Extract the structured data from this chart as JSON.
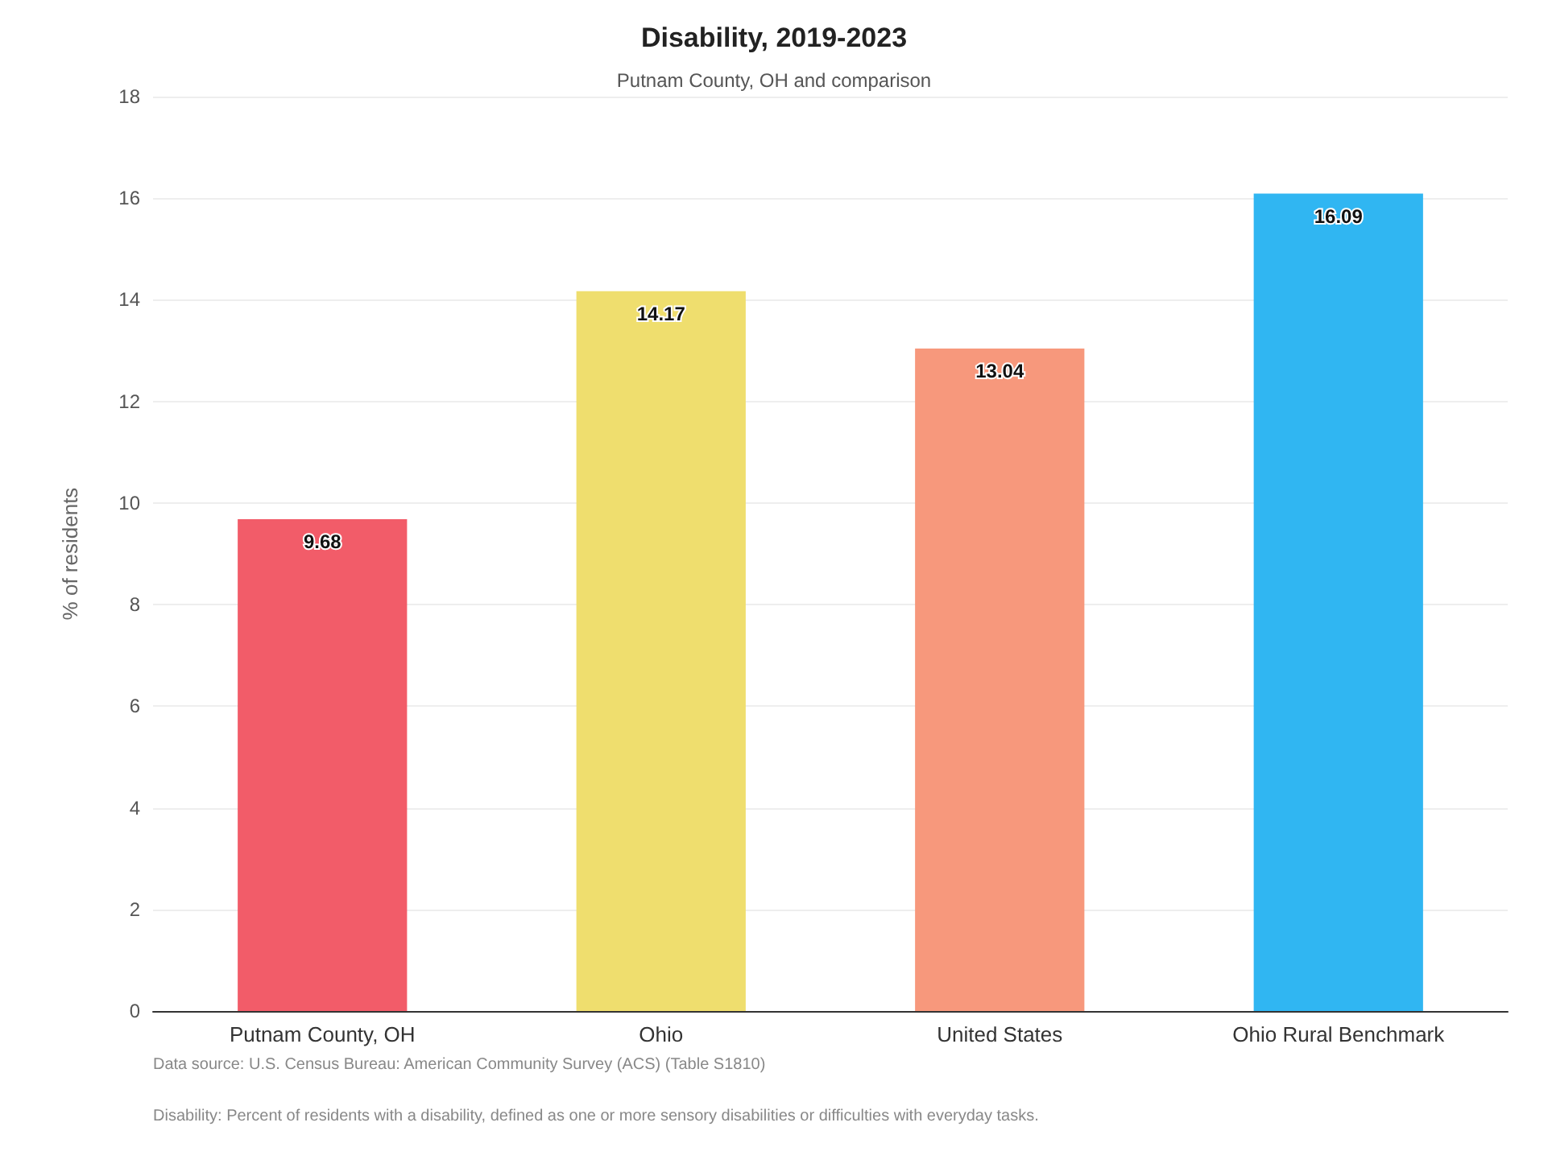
{
  "chart_data": {
    "type": "bar",
    "title": "Disability, 2019-2023",
    "subtitle": "Putnam County, OH and comparison",
    "ylabel": "% of residents",
    "categories": [
      "Putnam County, OH",
      "Ohio",
      "United States",
      "Ohio Rural Benchmark"
    ],
    "values": [
      9.68,
      14.17,
      13.04,
      16.09
    ],
    "colors": [
      "#f25c69",
      "#efde6e",
      "#f7987c",
      "#30b6f2"
    ],
    "ylim": [
      0,
      18
    ],
    "yticks": [
      0,
      2,
      4,
      6,
      8,
      10,
      12,
      14,
      16,
      18
    ],
    "grid": "y",
    "data_labels": true,
    "annotations": [
      "Data source: U.S. Census Bureau: American Community Survey (ACS) (Table S1810)",
      "Disability: Percent of residents with a disability, defined as one or more sensory disabilities or difficulties with everyday tasks."
    ]
  }
}
